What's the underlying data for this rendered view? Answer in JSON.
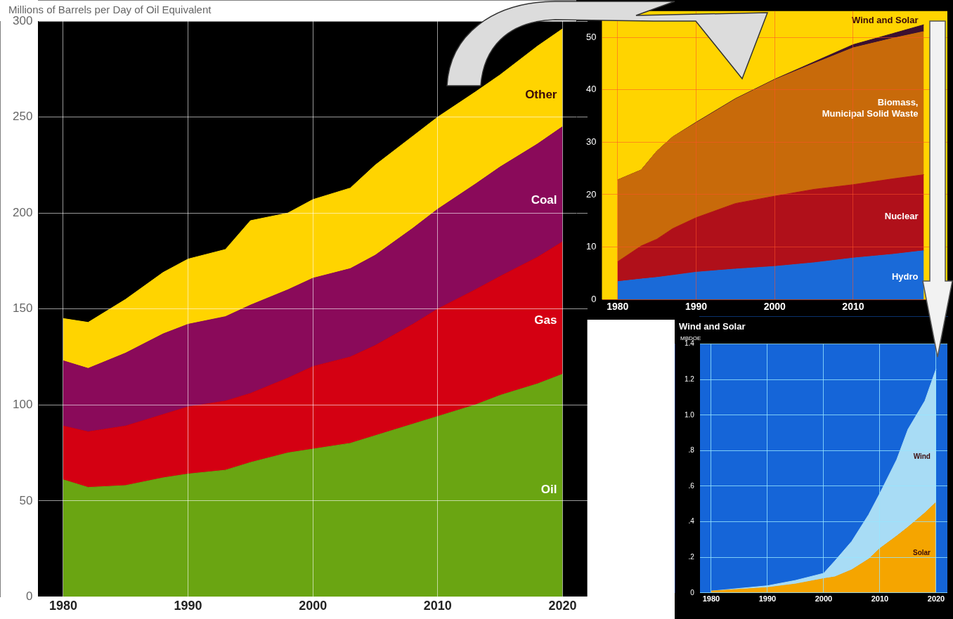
{
  "chart_data": [
    {
      "type": "area",
      "ylabel": "Millions of Barrels per Day of Oil Equivalent",
      "x": [
        1980,
        1982,
        1985,
        1988,
        1990,
        1993,
        1995,
        1998,
        2000,
        2003,
        2005,
        2008,
        2010,
        2013,
        2015,
        2018,
        2020
      ],
      "stacked": true,
      "grid": true,
      "xlim": [
        1978,
        2022
      ],
      "xticks": [
        1980,
        1990,
        2000,
        2010,
        2020
      ],
      "ylim": [
        0,
        300
      ],
      "yticks": [
        0,
        50,
        100,
        150,
        200,
        250,
        300
      ],
      "series": [
        {
          "name": "Oil",
          "color": "#6aa512",
          "values": [
            61,
            57,
            58,
            62,
            64,
            66,
            70,
            75,
            77,
            80,
            84,
            90,
            94,
            100,
            105,
            111,
            116
          ]
        },
        {
          "name": "Gas",
          "color": "#d40012",
          "values": [
            28,
            29,
            31,
            33,
            35,
            36,
            36,
            39,
            43,
            45,
            47,
            52,
            56,
            60,
            62,
            66,
            69
          ]
        },
        {
          "name": "Coal",
          "color": "#8a0a5a",
          "values": [
            34,
            33,
            38,
            42,
            43,
            44,
            46,
            46,
            46,
            46,
            47,
            50,
            52,
            55,
            57,
            59,
            60
          ]
        },
        {
          "name": "Other",
          "color": "#ffd400",
          "values": [
            22,
            24,
            28,
            32,
            34,
            35,
            44,
            40,
            41,
            42,
            47,
            48,
            48,
            48,
            48,
            51,
            51
          ]
        }
      ]
    },
    {
      "type": "area",
      "x": [
        1980,
        1983,
        1985,
        1987,
        1990,
        1995,
        2000,
        2005,
        2010,
        2015,
        2019
      ],
      "stacked": true,
      "grid": true,
      "xlim": [
        1978,
        2022
      ],
      "xticks": [
        1980,
        1990,
        2000,
        2010
      ],
      "ylim": [
        0,
        55
      ],
      "yticks": [
        0,
        10,
        20,
        30,
        40,
        50
      ],
      "bands": [
        {
          "axis": "y",
          "from": 0,
          "to": 55,
          "color": "#ffd400"
        }
      ],
      "series": [
        {
          "name": "Hydro",
          "color": "#1a6ad8",
          "values": [
            3.4,
            3.9,
            4.2,
            4.6,
            5.2,
            5.8,
            6.3,
            7.0,
            7.9,
            8.6,
            9.3
          ]
        },
        {
          "name": "Nuclear",
          "color": "#b0101a",
          "values": [
            3.8,
            6.3,
            7.3,
            8.9,
            10.4,
            12.5,
            13.4,
            14.0,
            14.0,
            14.4,
            14.5
          ]
        },
        {
          "name": "Biomass, Municipal Solid Waste",
          "color": "#c86a0a",
          "values": [
            15.6,
            14.5,
            16.8,
            17.5,
            18.1,
            19.9,
            22.2,
            24.0,
            26.1,
            26.8,
            27.3
          ]
        },
        {
          "name": "Wind and Solar",
          "color": "#3b1030",
          "values": [
            0,
            0,
            0,
            0,
            0.1,
            0.1,
            0.1,
            0.3,
            0.6,
            0.9,
            1.3
          ]
        }
      ]
    },
    {
      "type": "area",
      "title": "Wind and Solar",
      "ylabel": "MBDOE",
      "x": [
        1980,
        1990,
        1995,
        2000,
        2002,
        2005,
        2008,
        2010,
        2013,
        2015,
        2018,
        2020
      ],
      "stacked": true,
      "grid": true,
      "xlim": [
        1978,
        2022
      ],
      "xticks": [
        1980,
        1990,
        2000,
        2010,
        2020
      ],
      "ylim": [
        0,
        1.4
      ],
      "yticks": [
        0,
        {
          "value": 0.2,
          "label": ".2"
        },
        {
          "value": 0.4,
          "label": ".4"
        },
        {
          "value": 0.6,
          "label": ".6"
        },
        {
          "value": 0.8,
          "label": ".8"
        },
        {
          "value": 1,
          "label": "1.0"
        },
        {
          "value": 1.2,
          "label": "1.2"
        },
        {
          "value": 1.4,
          "label": "1.4"
        }
      ],
      "series": [
        {
          "name": "Solar",
          "color": "#f5a500",
          "values": [
            0.01,
            0.03,
            0.05,
            0.08,
            0.09,
            0.13,
            0.19,
            0.25,
            0.32,
            0.37,
            0.45,
            0.51
          ]
        },
        {
          "name": "Wind",
          "color": "#a8dcf5",
          "values": [
            0,
            0.01,
            0.02,
            0.03,
            0.09,
            0.16,
            0.25,
            0.31,
            0.43,
            0.55,
            0.63,
            0.75
          ]
        }
      ]
    }
  ]
}
